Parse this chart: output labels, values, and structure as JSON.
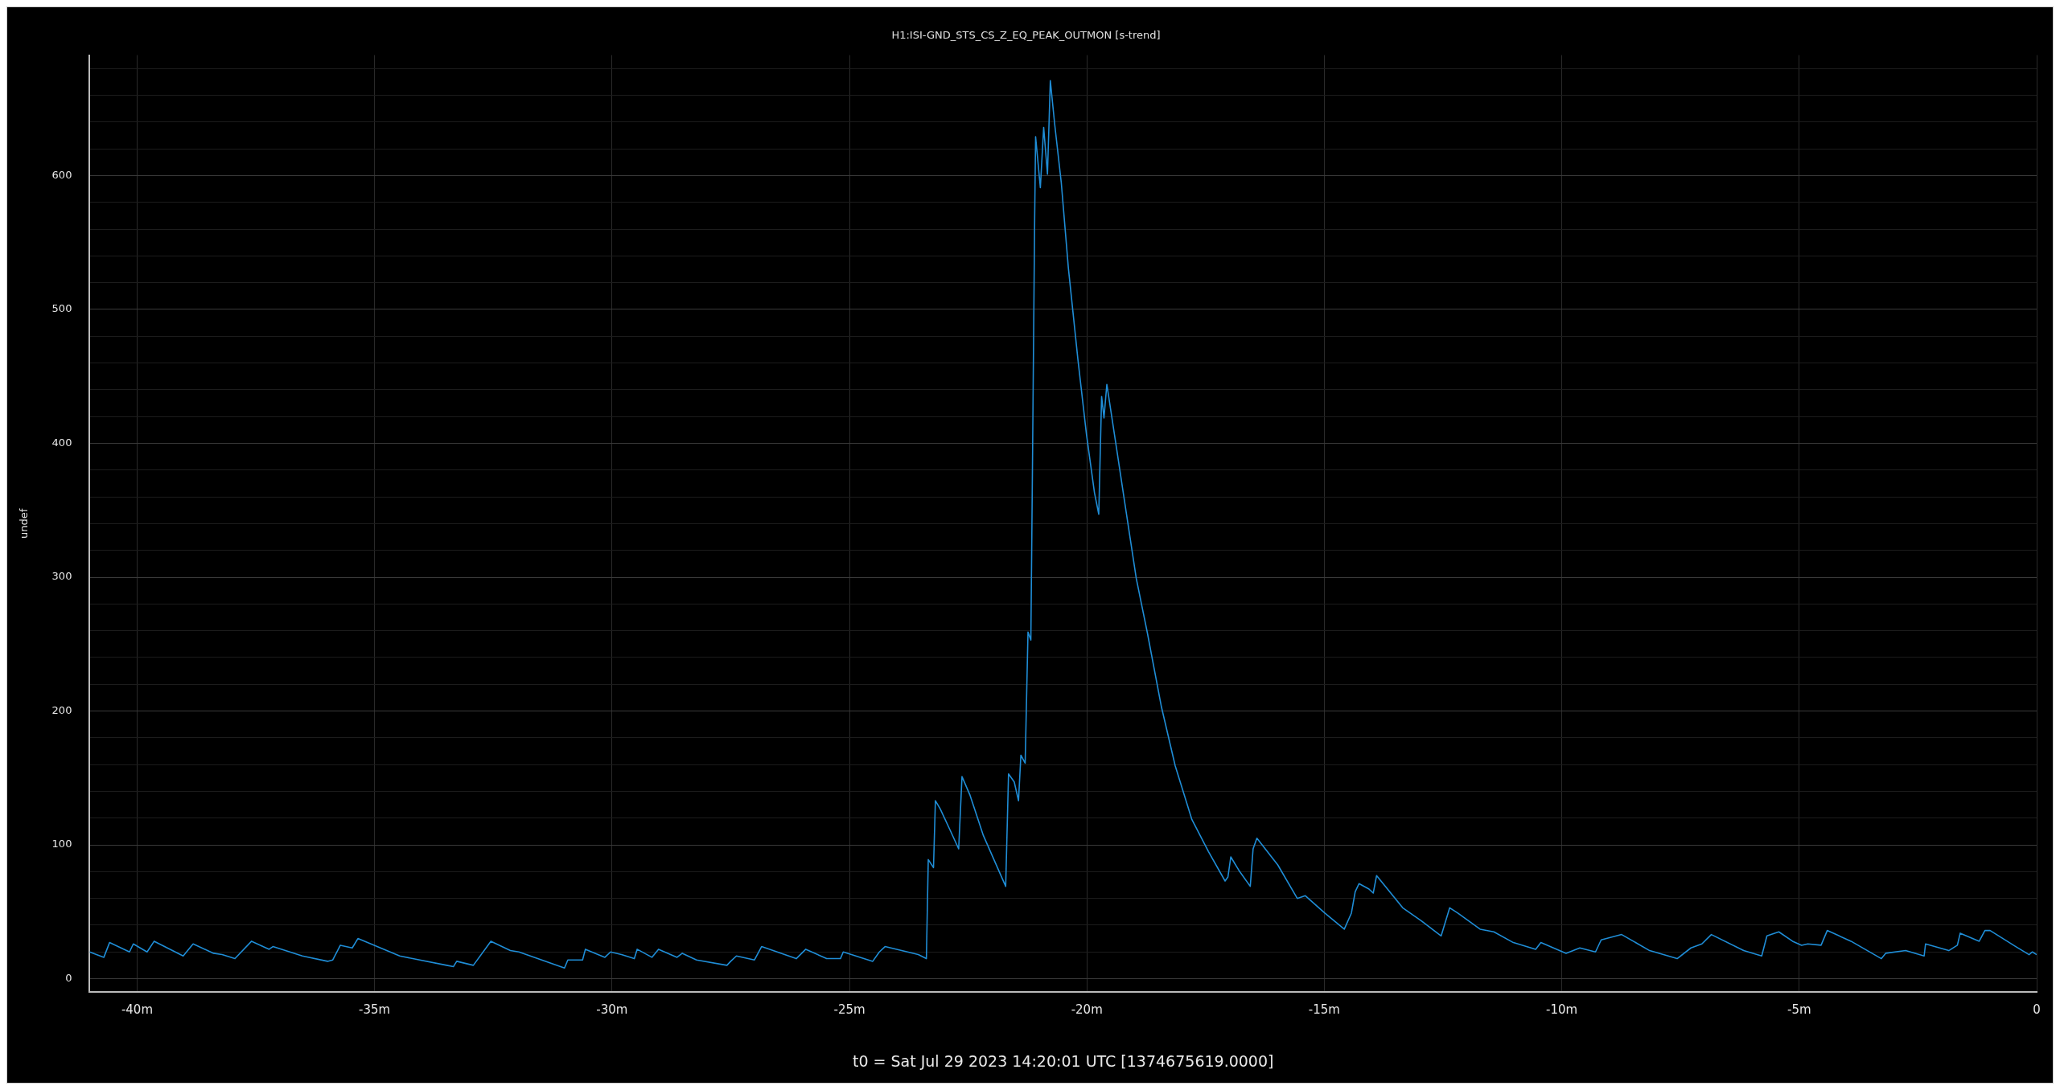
{
  "chart_data": {
    "type": "line",
    "title": "H1:ISI-GND_STS_CS_Z_EQ_PEAK_OUTMON [s-trend]",
    "xlabel": "t0 = Sat Jul 29 2023 14:20:01 UTC [1374675619.0000]",
    "ylabel": "undef",
    "xlim": [
      -41,
      0
    ],
    "xticks": [
      {
        "value": -40,
        "label": "-40m"
      },
      {
        "value": -35,
        "label": "-35m"
      },
      {
        "value": -30,
        "label": "-30m"
      },
      {
        "value": -25,
        "label": "-25m"
      },
      {
        "value": -20,
        "label": "-20m"
      },
      {
        "value": -15,
        "label": "-15m"
      },
      {
        "value": -10,
        "label": "-10m"
      },
      {
        "value": -5,
        "label": "-5m"
      },
      0
    ],
    "ylim": [
      -10,
      690
    ],
    "yticks": [
      0,
      {
        "value": 20,
        "label": null
      },
      {
        "value": 40,
        "label": null
      },
      {
        "value": 60,
        "label": null
      },
      {
        "value": 80,
        "label": null
      },
      100,
      {
        "value": 120,
        "label": null
      },
      {
        "value": 140,
        "label": null
      },
      {
        "value": 160,
        "label": null
      },
      {
        "value": 180,
        "label": null
      },
      200,
      {
        "value": 220,
        "label": null
      },
      {
        "value": 240,
        "label": null
      },
      {
        "value": 260,
        "label": null
      },
      {
        "value": 280,
        "label": null
      },
      300,
      {
        "value": 320,
        "label": null
      },
      {
        "value": 340,
        "label": null
      },
      {
        "value": 360,
        "label": null
      },
      {
        "value": 380,
        "label": null
      },
      400,
      {
        "value": 420,
        "label": null
      },
      {
        "value": 440,
        "label": null
      },
      {
        "value": 460,
        "label": null
      },
      {
        "value": 480,
        "label": null
      },
      500,
      {
        "value": 520,
        "label": null
      },
      {
        "value": 540,
        "label": null
      },
      {
        "value": 560,
        "label": null
      },
      {
        "value": 580,
        "label": null
      },
      600,
      {
        "value": 620,
        "label": null
      },
      {
        "value": 640,
        "label": null
      },
      {
        "value": 660,
        "label": null
      },
      {
        "value": 680,
        "label": null
      }
    ],
    "grid": true,
    "legend": false,
    "marker": "none",
    "line_style": "solid",
    "series": [
      {
        "color": "#1f8dd6",
        "x": [
          -41.0,
          -40.7,
          -40.58,
          -40.16,
          -40.08,
          -39.79,
          -39.64,
          -39.03,
          -38.82,
          -38.39,
          -38.21,
          -37.94,
          -37.59,
          -37.22,
          -37.14,
          -36.52,
          -35.99,
          -35.88,
          -35.72,
          -35.47,
          -35.35,
          -34.47,
          -33.48,
          -33.34,
          -33.27,
          -32.92,
          -32.55,
          -32.14,
          -31.96,
          -31.0,
          -30.93,
          -30.62,
          -30.56,
          -30.15,
          -30.03,
          -29.8,
          -29.53,
          -29.47,
          -29.16,
          -29.02,
          -28.63,
          -28.52,
          -28.22,
          -27.58,
          -27.5,
          -27.38,
          -27.0,
          -26.85,
          -26.12,
          -25.92,
          -25.48,
          -25.19,
          -25.13,
          -24.51,
          -24.37,
          -24.25,
          -23.55,
          -23.38,
          -23.34,
          -23.23,
          -23.19,
          -23.09,
          -22.88,
          -22.7,
          -22.63,
          -22.46,
          -22.18,
          -21.71,
          -21.65,
          -21.53,
          -21.44,
          -21.39,
          -21.3,
          -21.24,
          -21.18,
          -21.15,
          -21.1,
          -21.08,
          -20.98,
          -20.91,
          -20.83,
          -20.77,
          -20.68,
          -20.54,
          -20.39,
          -20.19,
          -20.01,
          -19.84,
          -19.75,
          -19.69,
          -19.64,
          -19.58,
          -19.49,
          -19.37,
          -19.2,
          -18.96,
          -18.73,
          -18.43,
          -18.14,
          -17.79,
          -17.44,
          -17.09,
          -17.03,
          -16.97,
          -16.8,
          -16.56,
          -16.5,
          -16.42,
          -15.98,
          -15.57,
          -15.4,
          -14.99,
          -14.58,
          -14.43,
          -14.35,
          -14.27,
          -14.06,
          -13.97,
          -13.9,
          -13.35,
          -12.95,
          -12.54,
          -12.36,
          -12.19,
          -11.72,
          -11.43,
          -11.02,
          -10.55,
          -10.44,
          -9.91,
          -9.62,
          -9.29,
          -9.17,
          -8.74,
          -8.15,
          -7.57,
          -7.28,
          -7.05,
          -6.85,
          -6.17,
          -5.79,
          -5.68,
          -5.43,
          -5.14,
          -4.95,
          -4.82,
          -4.54,
          -4.41,
          -3.91,
          -3.27,
          -3.18,
          -2.76,
          -2.37,
          -2.34,
          -1.85,
          -1.67,
          -1.61,
          -1.21,
          -1.09,
          -0.98,
          -0.44,
          -0.16,
          -0.09,
          0
        ],
        "values": [
          20,
          16,
          27,
          20,
          26,
          20,
          28,
          17,
          26,
          19,
          18,
          15,
          28,
          22,
          24,
          17,
          13,
          14,
          25,
          23,
          30,
          17,
          10,
          9,
          13,
          10,
          28,
          21,
          20,
          8,
          14,
          14,
          22,
          16,
          20,
          18,
          15,
          22,
          16,
          22,
          16,
          19,
          14,
          10,
          13,
          17,
          14,
          24,
          15,
          22,
          15,
          15,
          20,
          13,
          20,
          24,
          18,
          15,
          89,
          83,
          133,
          127,
          111,
          97,
          151,
          137,
          107,
          69,
          153,
          147,
          133,
          167,
          161,
          259,
          253,
          367,
          567,
          629,
          591,
          636,
          601,
          671,
          639,
          595,
          531,
          463,
          407,
          363,
          347,
          435,
          419,
          444,
          423,
          395,
          355,
          299,
          259,
          203,
          159,
          119,
          95,
          73,
          76,
          91,
          81,
          69,
          97,
          105,
          85,
          60,
          62,
          49,
          37,
          49,
          65,
          71,
          67,
          64,
          77,
          53,
          43,
          32,
          53,
          49,
          37,
          35,
          27,
          22,
          27,
          19,
          23,
          20,
          29,
          33,
          21,
          15,
          23,
          26,
          33,
          21,
          17,
          32,
          35,
          28,
          25,
          26,
          25,
          36,
          28,
          15,
          19,
          21,
          17,
          26,
          21,
          25,
          34,
          28,
          36,
          36,
          24,
          18,
          20,
          18
        ]
      }
    ]
  }
}
